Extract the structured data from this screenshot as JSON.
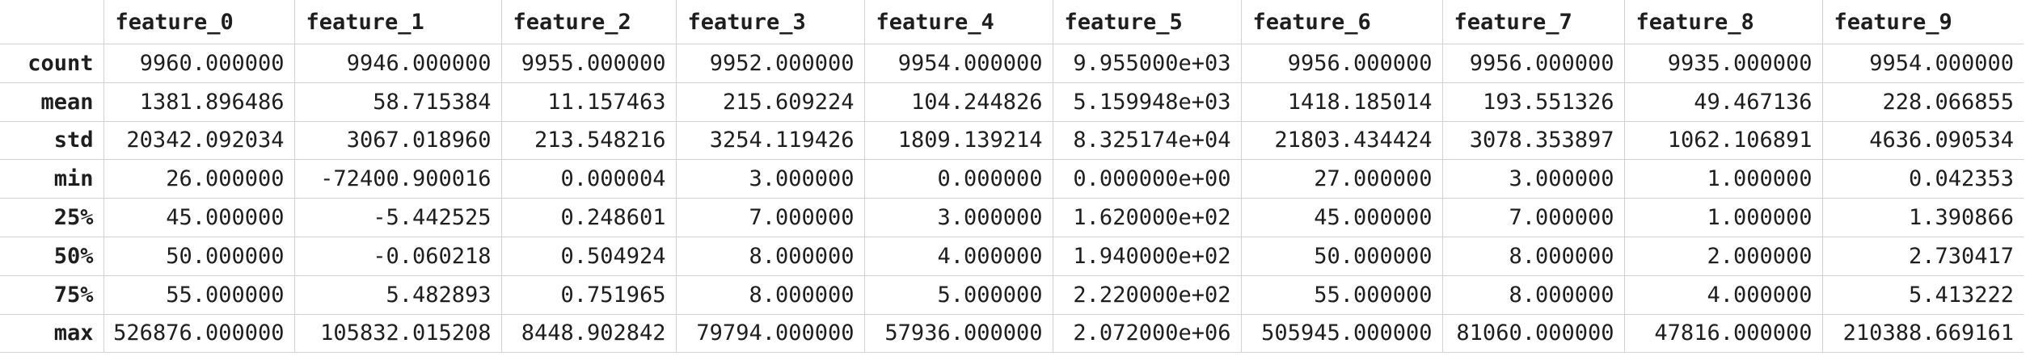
{
  "table": {
    "columns": [
      "feature_0",
      "feature_1",
      "feature_2",
      "feature_3",
      "feature_4",
      "feature_5",
      "feature_6",
      "feature_7",
      "feature_8",
      "feature_9"
    ],
    "rows": [
      {
        "label": "count",
        "cells": [
          "9960.000000",
          "9946.000000",
          "9955.000000",
          "9952.000000",
          "9954.000000",
          "9.955000e+03",
          "9956.000000",
          "9956.000000",
          "9935.000000",
          "9954.000000"
        ]
      },
      {
        "label": "mean",
        "cells": [
          "1381.896486",
          "58.715384",
          "11.157463",
          "215.609224",
          "104.244826",
          "5.159948e+03",
          "1418.185014",
          "193.551326",
          "49.467136",
          "228.066855"
        ]
      },
      {
        "label": "std",
        "cells": [
          "20342.092034",
          "3067.018960",
          "213.548216",
          "3254.119426",
          "1809.139214",
          "8.325174e+04",
          "21803.434424",
          "3078.353897",
          "1062.106891",
          "4636.090534"
        ]
      },
      {
        "label": "min",
        "cells": [
          "26.000000",
          "-72400.900016",
          "0.000004",
          "3.000000",
          "0.000000",
          "0.000000e+00",
          "27.000000",
          "3.000000",
          "1.000000",
          "0.042353"
        ]
      },
      {
        "label": "25%",
        "cells": [
          "45.000000",
          "-5.442525",
          "0.248601",
          "7.000000",
          "3.000000",
          "1.620000e+02",
          "45.000000",
          "7.000000",
          "1.000000",
          "1.390866"
        ]
      },
      {
        "label": "50%",
        "cells": [
          "50.000000",
          "-0.060218",
          "0.504924",
          "8.000000",
          "4.000000",
          "1.940000e+02",
          "50.000000",
          "8.000000",
          "2.000000",
          "2.730417"
        ]
      },
      {
        "label": "75%",
        "cells": [
          "55.000000",
          "5.482893",
          "0.751965",
          "8.000000",
          "5.000000",
          "2.220000e+02",
          "55.000000",
          "8.000000",
          "4.000000",
          "5.413222"
        ]
      },
      {
        "label": "max",
        "cells": [
          "526876.000000",
          "105832.015208",
          "8448.902842",
          "79794.000000",
          "57936.000000",
          "2.072000e+06",
          "505945.000000",
          "81060.000000",
          "47816.000000",
          "210388.669161"
        ]
      }
    ]
  }
}
